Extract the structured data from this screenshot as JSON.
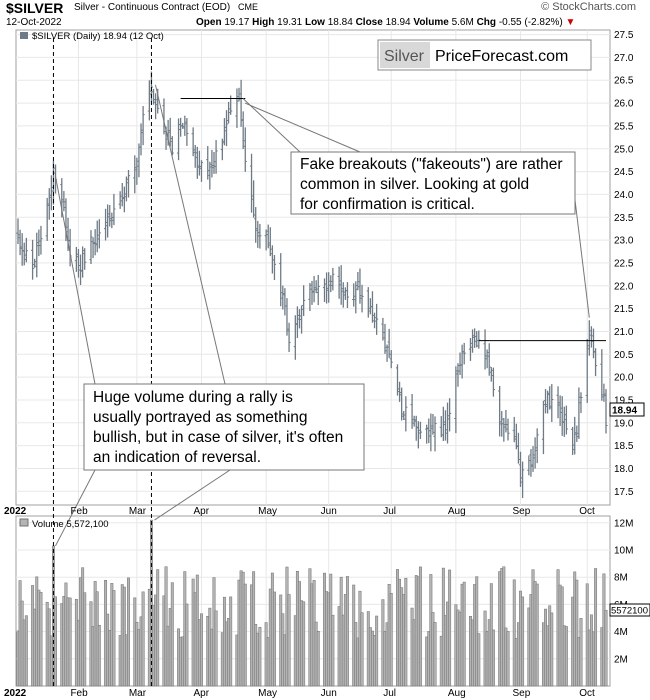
{
  "header": {
    "symbol": "$SILVER",
    "subtitle": "Silver - Continuous Contract (EOD)",
    "exchange": "CME",
    "logo": "© StockCharts.com",
    "date": "12-Oct-2022",
    "open_label": "Open",
    "open": "19.17",
    "high_label": "High",
    "high": "19.31",
    "low_label": "Low",
    "low": "18.84",
    "close_label": "Close",
    "close": "18.94",
    "volume_label": "Volume",
    "volume": "5.6M",
    "chg_label": "Chg",
    "chg": "-0.55 (-2.82%)"
  },
  "legend": {
    "price": "$SILVER (Daily) 18.94 (12 Oct)",
    "volume": "Volume 5,572,100"
  },
  "brand": {
    "left": "Silver",
    "right": "PriceForecast.com"
  },
  "annotations": {
    "fakeout": "Fake breakouts (\"fakeouts\") are rather common in silver. Looking at gold for confirmation is critical.",
    "volume_note": "Huge volume during a rally is usually portrayed as something bullish, but in case of silver, it's often an indication of reversal."
  },
  "last_price_label": "18.94",
  "last_volume_label": "5572100",
  "colors": {
    "bar": "#6e7b86",
    "volume_fill": "#b4b4b4",
    "volume_stroke": "#707070",
    "grid": "#e8e8e8",
    "down": "#cc0000"
  },
  "chart_data": [
    {
      "type": "ohlc",
      "title": "$SILVER (Daily) 18.94 (12 Oct)",
      "ylim": [
        17.2,
        27.6
      ],
      "y_ticks": [
        17.5,
        18.0,
        18.5,
        19.0,
        19.5,
        20.0,
        20.5,
        21.0,
        21.5,
        22.0,
        22.5,
        23.0,
        23.5,
        24.0,
        24.5,
        25.0,
        25.5,
        26.0,
        26.5,
        27.0,
        27.5
      ],
      "x_ticks": [
        "2022",
        "Feb",
        "Mar",
        "Apr",
        "May",
        "Jun",
        "Jul",
        "Aug",
        "Sep",
        "Oct"
      ],
      "scale": "linear",
      "grid": true,
      "close_anchors": [
        [
          "2022-01-03",
          23.0
        ],
        [
          "2022-01-10",
          22.4
        ],
        [
          "2022-01-14",
          23.1
        ],
        [
          "2022-01-20",
          24.5
        ],
        [
          "2022-01-24",
          24.0
        ],
        [
          "2022-01-28",
          22.6
        ],
        [
          "2022-02-02",
          22.5
        ],
        [
          "2022-02-08",
          23.0
        ],
        [
          "2022-02-15",
          23.5
        ],
        [
          "2022-02-22",
          24.0
        ],
        [
          "2022-02-28",
          24.5
        ],
        [
          "2022-03-04",
          25.7
        ],
        [
          "2022-03-08",
          26.5
        ],
        [
          "2022-03-10",
          26.0
        ],
        [
          "2022-03-14",
          25.4
        ],
        [
          "2022-03-18",
          25.0
        ],
        [
          "2022-03-24",
          25.6
        ],
        [
          "2022-03-29",
          24.8
        ],
        [
          "2022-04-04",
          24.6
        ],
        [
          "2022-04-08",
          24.8
        ],
        [
          "2022-04-13",
          25.6
        ],
        [
          "2022-04-19",
          26.0
        ],
        [
          "2022-04-22",
          24.6
        ],
        [
          "2022-04-28",
          23.1
        ],
        [
          "2022-05-04",
          22.9
        ],
        [
          "2022-05-11",
          21.5
        ],
        [
          "2022-05-13",
          20.9
        ],
        [
          "2022-05-19",
          21.6
        ],
        [
          "2022-05-25",
          21.9
        ],
        [
          "2022-06-03",
          22.2
        ],
        [
          "2022-06-10",
          21.8
        ],
        [
          "2022-06-15",
          21.9
        ],
        [
          "2022-06-22",
          21.3
        ],
        [
          "2022-06-30",
          20.6
        ],
        [
          "2022-07-06",
          19.3
        ],
        [
          "2022-07-12",
          18.9
        ],
        [
          "2022-07-19",
          18.8
        ],
        [
          "2022-07-27",
          18.9
        ],
        [
          "2022-08-02",
          20.2
        ],
        [
          "2022-08-05",
          20.6
        ],
        [
          "2022-08-12",
          20.8
        ],
        [
          "2022-08-16",
          20.4
        ],
        [
          "2022-08-22",
          19.1
        ],
        [
          "2022-08-29",
          18.7
        ],
        [
          "2022-09-01",
          17.9
        ],
        [
          "2022-09-06",
          18.1
        ],
        [
          "2022-09-12",
          19.5
        ],
        [
          "2022-09-19",
          19.5
        ],
        [
          "2022-09-26",
          18.4
        ],
        [
          "2022-09-28",
          18.9
        ],
        [
          "2022-10-03",
          20.8
        ],
        [
          "2022-10-04",
          21.0
        ],
        [
          "2022-10-07",
          20.2
        ],
        [
          "2022-10-11",
          19.5
        ],
        [
          "2022-10-12",
          18.94
        ]
      ],
      "resistance_lines": [
        {
          "from": "2022-03-22",
          "to": "2022-04-22",
          "y": 26.1
        },
        {
          "from": "2022-08-12",
          "to": "2022-10-12",
          "y": 20.8
        }
      ],
      "last_price": 18.94
    },
    {
      "type": "bar",
      "title": "Volume 5,572,100",
      "ylim": [
        0,
        12500000
      ],
      "y_tick_labels": [
        "2M",
        "4M",
        "6M",
        "8M",
        "10M",
        "12M"
      ],
      "y_tick_values": [
        2000000,
        4000000,
        6000000,
        8000000,
        10000000,
        12000000
      ],
      "spikes": [
        [
          "2022-01-20",
          10300000
        ],
        [
          "2022-03-08",
          12200000
        ]
      ],
      "typical_range": [
        3500000,
        8800000
      ],
      "last_volume": 5572100
    }
  ]
}
